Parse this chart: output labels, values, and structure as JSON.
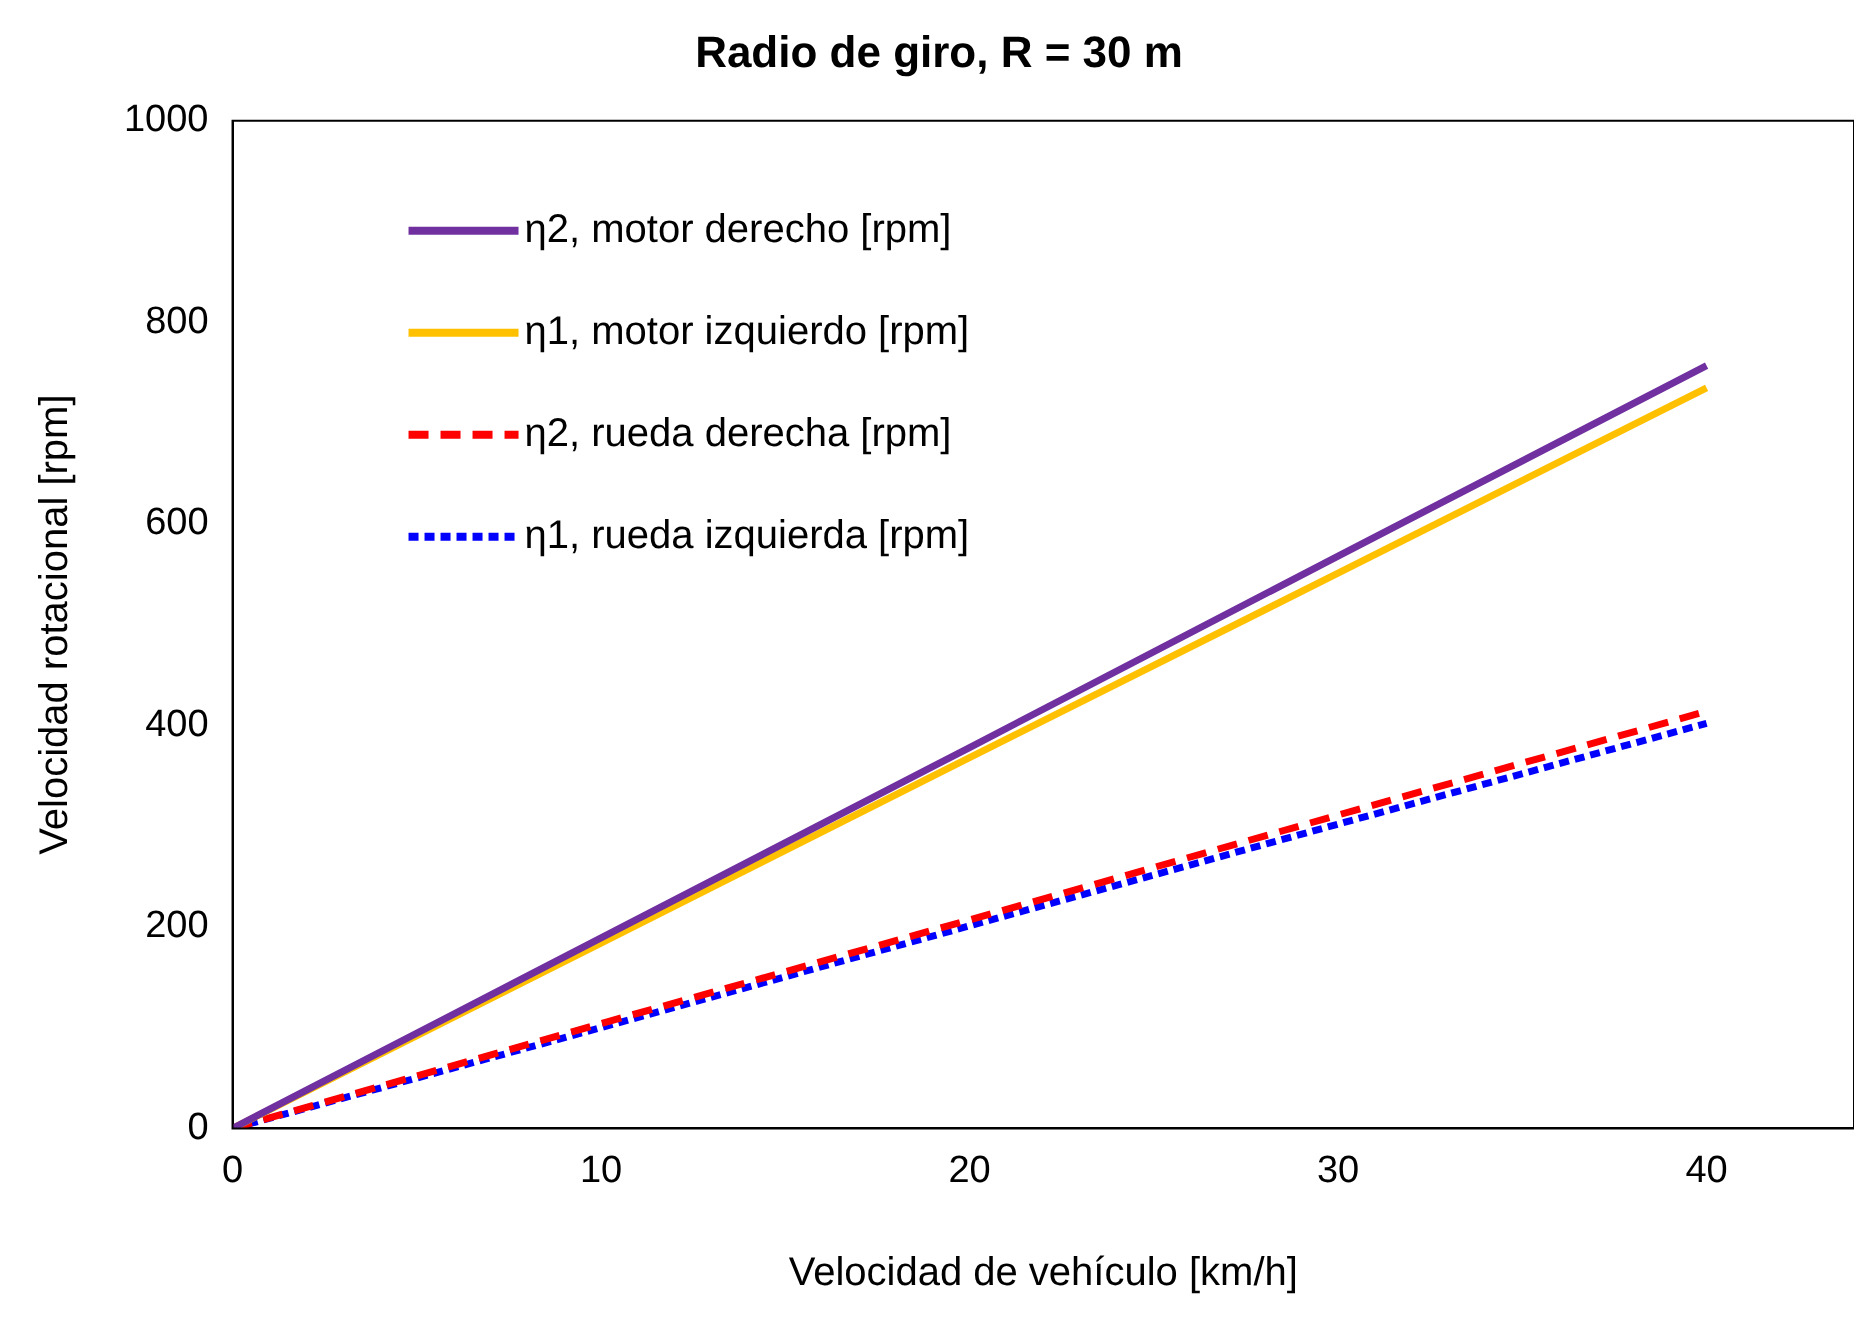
{
  "chart_data": {
    "type": "line",
    "title": "Radio de giro, R = 30 m",
    "xlabel": "Velocidad de vehículo [km/h]",
    "ylabel": "Velocidad rotacional [rpm]",
    "xlim": [
      0,
      44
    ],
    "xticks": [
      0,
      10,
      20,
      30,
      40
    ],
    "ylim": [
      0,
      1000
    ],
    "yticks": [
      0,
      200,
      400,
      600,
      800,
      1000
    ],
    "grid": false,
    "legend": "top left",
    "marker": "none",
    "series": [
      {
        "name": "η2, motor derecho [rpm]",
        "color": "#7030a0",
        "x": [
          0,
          10,
          20,
          30,
          40
        ],
        "values": [
          0,
          189,
          378,
          568,
          757
        ],
        "line_style": "solid"
      },
      {
        "name": "η1, motor izquierdo [rpm]",
        "color": "#ffc000",
        "x": [
          0,
          10,
          20,
          30,
          40
        ],
        "values": [
          0,
          184,
          368,
          551,
          735
        ],
        "line_style": "solid"
      },
      {
        "name": "η2, rueda derecha [rpm]",
        "color": "#ff0000",
        "x": [
          0,
          10,
          20,
          30,
          40
        ],
        "values": [
          0,
          104,
          207,
          311,
          414
        ],
        "line_style": "dashed"
      },
      {
        "name": "η1, rueda izquierda [rpm]",
        "color": "#0000ff",
        "x": [
          0,
          10,
          20,
          30,
          40
        ],
        "values": [
          0,
          100,
          201,
          302,
          402
        ],
        "line_style": "dotted"
      }
    ]
  }
}
